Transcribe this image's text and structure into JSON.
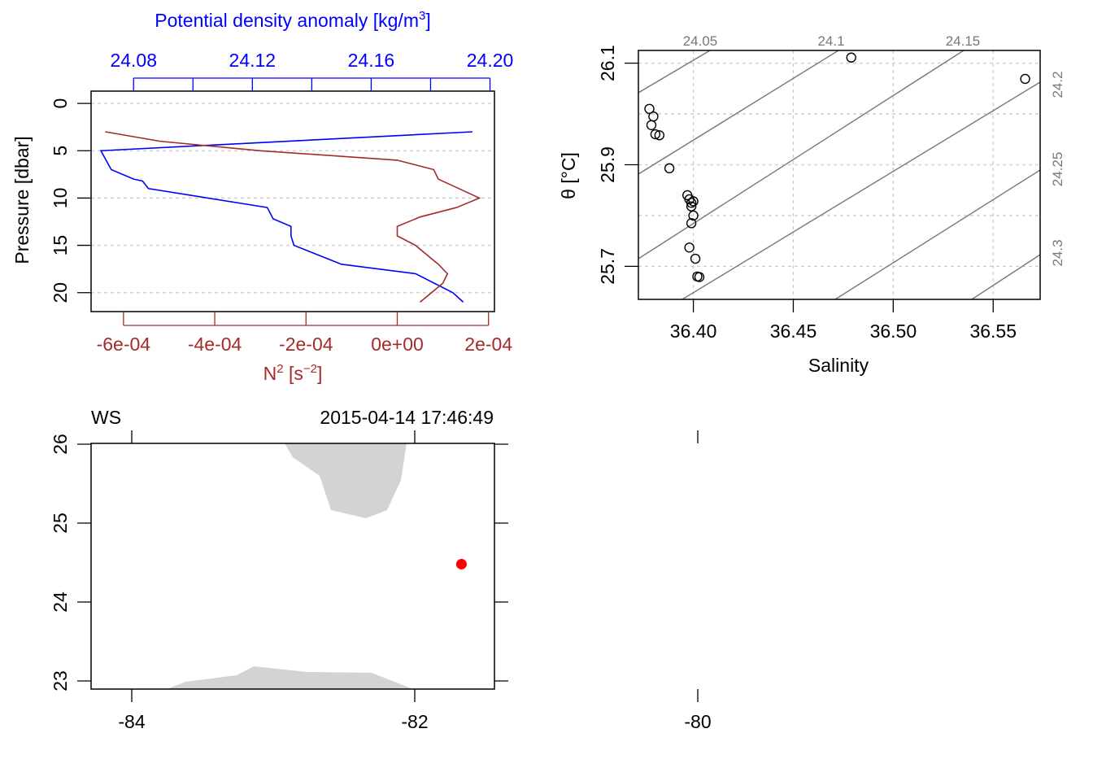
{
  "colors": {
    "density": "#0000ff",
    "n2": "#a52a2a",
    "isopycnal": "#777777",
    "grid": "#cccccc",
    "land": "#d3d3d3",
    "station": "#ff0000"
  },
  "chart_data": [
    {
      "type": "line",
      "panel": "profile",
      "ylabel": "Pressure [dbar]",
      "ylim": [
        22,
        -1.3
      ],
      "yticks": [
        "0",
        "5",
        "10",
        "15",
        "20"
      ],
      "top_axis": {
        "label_main": "Potential density anomaly [kg/m",
        "label_sup": "3",
        "label_end": "]",
        "ticks_labeled": [
          "24.08",
          "24.12",
          "24.16",
          "24.20"
        ],
        "tick_values_all": [
          24.08,
          24.1,
          24.12,
          24.14,
          24.16,
          24.18,
          24.2
        ],
        "xlim": [
          24.0657,
          24.2015
        ]
      },
      "bottom_axis": {
        "label_main": "N",
        "label_sup1": "2",
        "label_mid": " [s",
        "label_sup2": "−2",
        "label_end": "]",
        "ticks_labeled": [
          "-6e-04",
          "-4e-04",
          "-2e-04",
          "0e+00",
          "2e-04"
        ],
        "tick_values": [
          -0.0006,
          -0.0004,
          -0.0002,
          0,
          0.0002
        ],
        "xlim": [
          -0.000671,
          0.000213
        ]
      },
      "series": [
        {
          "key": "sigma",
          "x": [
            24.1941,
            24.069,
            24.0725,
            24.08,
            24.083,
            24.085,
            24.125,
            24.127,
            24.133,
            24.133,
            24.134,
            24.15,
            24.175,
            24.1875,
            24.191
          ],
          "y": [
            3,
            5,
            7,
            8,
            8.2,
            9,
            11,
            12.2,
            13,
            14,
            15,
            17,
            18,
            20,
            21
          ]
        },
        {
          "key": "n2",
          "x": [
            -0.00064,
            -0.00052,
            -0.0003,
            0.0,
            8e-05,
            9e-05,
            0.00018,
            0.00013,
            5e-05,
            0.0,
            0.0,
            4e-05,
            9e-05,
            0.00011,
            0.0001,
            5e-05
          ],
          "y": [
            3,
            4,
            5,
            6,
            7,
            8,
            10,
            11,
            12,
            13,
            14,
            15,
            17,
            18,
            19,
            21
          ]
        }
      ]
    },
    {
      "type": "scatter",
      "panel": "ts",
      "xlabel": "Salinity",
      "ylabel": "θ [°C]",
      "xlim": [
        36.3725,
        36.5735
      ],
      "ylim": [
        25.635,
        26.125
      ],
      "xticks": [
        "36.40",
        "36.45",
        "36.50",
        "36.55"
      ],
      "yticks": [
        "25.7",
        "25.9",
        "26.1"
      ],
      "isopycnal_labels": [
        "24.05",
        "24.1",
        "24.15",
        "24.2",
        "24.25",
        "24.3"
      ],
      "points": [
        {
          "x": 36.479,
          "y": 26.111
        },
        {
          "x": 36.566,
          "y": 26.069
        },
        {
          "x": 36.378,
          "y": 26.01
        },
        {
          "x": 36.38,
          "y": 25.995
        },
        {
          "x": 36.379,
          "y": 25.978
        },
        {
          "x": 36.381,
          "y": 25.96
        },
        {
          "x": 36.383,
          "y": 25.958
        },
        {
          "x": 36.388,
          "y": 25.893
        },
        {
          "x": 36.397,
          "y": 25.84
        },
        {
          "x": 36.398,
          "y": 25.832
        },
        {
          "x": 36.399,
          "y": 25.825
        },
        {
          "x": 36.4,
          "y": 25.828
        },
        {
          "x": 36.399,
          "y": 25.818
        },
        {
          "x": 36.4,
          "y": 25.8
        },
        {
          "x": 36.399,
          "y": 25.785
        },
        {
          "x": 36.398,
          "y": 25.737
        },
        {
          "x": 36.401,
          "y": 25.715
        },
        {
          "x": 36.402,
          "y": 25.68
        },
        {
          "x": 36.403,
          "y": 25.679
        }
      ]
    }
  ],
  "map": {
    "station_code": "WS",
    "timestamp": "2015-04-14 17:46:49",
    "xticks": [
      "-84",
      "-82",
      "-80"
    ],
    "yticks": [
      "23",
      "24",
      "25",
      "26"
    ],
    "station": {
      "lon": -81.67,
      "lat": 24.48
    }
  }
}
